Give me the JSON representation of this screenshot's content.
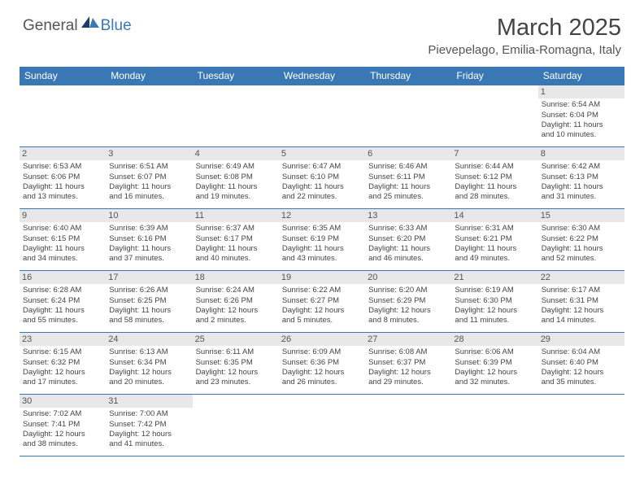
{
  "logo": {
    "textDark": "General",
    "textBlue": "Blue"
  },
  "title": "March 2025",
  "location": "Pievepelago, Emilia-Romagna, Italy",
  "dayHeaders": [
    "Sunday",
    "Monday",
    "Tuesday",
    "Wednesday",
    "Thursday",
    "Friday",
    "Saturday"
  ],
  "colors": {
    "headerBg": "#3a78b5",
    "headerText": "#ffffff",
    "border": "#3a78b5",
    "dayNumBg": "#e8e8e8",
    "bodyText": "#444444"
  },
  "typography": {
    "titleSize": 29,
    "locationSize": 15,
    "headerSize": 12,
    "cellSize": 9.5
  },
  "weeks": [
    [
      {
        "empty": true
      },
      {
        "empty": true
      },
      {
        "empty": true
      },
      {
        "empty": true
      },
      {
        "empty": true
      },
      {
        "empty": true
      },
      {
        "num": "1",
        "sunrise": "Sunrise: 6:54 AM",
        "sunset": "Sunset: 6:04 PM",
        "day1": "Daylight: 11 hours",
        "day2": "and 10 minutes."
      }
    ],
    [
      {
        "num": "2",
        "sunrise": "Sunrise: 6:53 AM",
        "sunset": "Sunset: 6:06 PM",
        "day1": "Daylight: 11 hours",
        "day2": "and 13 minutes."
      },
      {
        "num": "3",
        "sunrise": "Sunrise: 6:51 AM",
        "sunset": "Sunset: 6:07 PM",
        "day1": "Daylight: 11 hours",
        "day2": "and 16 minutes."
      },
      {
        "num": "4",
        "sunrise": "Sunrise: 6:49 AM",
        "sunset": "Sunset: 6:08 PM",
        "day1": "Daylight: 11 hours",
        "day2": "and 19 minutes."
      },
      {
        "num": "5",
        "sunrise": "Sunrise: 6:47 AM",
        "sunset": "Sunset: 6:10 PM",
        "day1": "Daylight: 11 hours",
        "day2": "and 22 minutes."
      },
      {
        "num": "6",
        "sunrise": "Sunrise: 6:46 AM",
        "sunset": "Sunset: 6:11 PM",
        "day1": "Daylight: 11 hours",
        "day2": "and 25 minutes."
      },
      {
        "num": "7",
        "sunrise": "Sunrise: 6:44 AM",
        "sunset": "Sunset: 6:12 PM",
        "day1": "Daylight: 11 hours",
        "day2": "and 28 minutes."
      },
      {
        "num": "8",
        "sunrise": "Sunrise: 6:42 AM",
        "sunset": "Sunset: 6:13 PM",
        "day1": "Daylight: 11 hours",
        "day2": "and 31 minutes."
      }
    ],
    [
      {
        "num": "9",
        "sunrise": "Sunrise: 6:40 AM",
        "sunset": "Sunset: 6:15 PM",
        "day1": "Daylight: 11 hours",
        "day2": "and 34 minutes."
      },
      {
        "num": "10",
        "sunrise": "Sunrise: 6:39 AM",
        "sunset": "Sunset: 6:16 PM",
        "day1": "Daylight: 11 hours",
        "day2": "and 37 minutes."
      },
      {
        "num": "11",
        "sunrise": "Sunrise: 6:37 AM",
        "sunset": "Sunset: 6:17 PM",
        "day1": "Daylight: 11 hours",
        "day2": "and 40 minutes."
      },
      {
        "num": "12",
        "sunrise": "Sunrise: 6:35 AM",
        "sunset": "Sunset: 6:19 PM",
        "day1": "Daylight: 11 hours",
        "day2": "and 43 minutes."
      },
      {
        "num": "13",
        "sunrise": "Sunrise: 6:33 AM",
        "sunset": "Sunset: 6:20 PM",
        "day1": "Daylight: 11 hours",
        "day2": "and 46 minutes."
      },
      {
        "num": "14",
        "sunrise": "Sunrise: 6:31 AM",
        "sunset": "Sunset: 6:21 PM",
        "day1": "Daylight: 11 hours",
        "day2": "and 49 minutes."
      },
      {
        "num": "15",
        "sunrise": "Sunrise: 6:30 AM",
        "sunset": "Sunset: 6:22 PM",
        "day1": "Daylight: 11 hours",
        "day2": "and 52 minutes."
      }
    ],
    [
      {
        "num": "16",
        "sunrise": "Sunrise: 6:28 AM",
        "sunset": "Sunset: 6:24 PM",
        "day1": "Daylight: 11 hours",
        "day2": "and 55 minutes."
      },
      {
        "num": "17",
        "sunrise": "Sunrise: 6:26 AM",
        "sunset": "Sunset: 6:25 PM",
        "day1": "Daylight: 11 hours",
        "day2": "and 58 minutes."
      },
      {
        "num": "18",
        "sunrise": "Sunrise: 6:24 AM",
        "sunset": "Sunset: 6:26 PM",
        "day1": "Daylight: 12 hours",
        "day2": "and 2 minutes."
      },
      {
        "num": "19",
        "sunrise": "Sunrise: 6:22 AM",
        "sunset": "Sunset: 6:27 PM",
        "day1": "Daylight: 12 hours",
        "day2": "and 5 minutes."
      },
      {
        "num": "20",
        "sunrise": "Sunrise: 6:20 AM",
        "sunset": "Sunset: 6:29 PM",
        "day1": "Daylight: 12 hours",
        "day2": "and 8 minutes."
      },
      {
        "num": "21",
        "sunrise": "Sunrise: 6:19 AM",
        "sunset": "Sunset: 6:30 PM",
        "day1": "Daylight: 12 hours",
        "day2": "and 11 minutes."
      },
      {
        "num": "22",
        "sunrise": "Sunrise: 6:17 AM",
        "sunset": "Sunset: 6:31 PM",
        "day1": "Daylight: 12 hours",
        "day2": "and 14 minutes."
      }
    ],
    [
      {
        "num": "23",
        "sunrise": "Sunrise: 6:15 AM",
        "sunset": "Sunset: 6:32 PM",
        "day1": "Daylight: 12 hours",
        "day2": "and 17 minutes."
      },
      {
        "num": "24",
        "sunrise": "Sunrise: 6:13 AM",
        "sunset": "Sunset: 6:34 PM",
        "day1": "Daylight: 12 hours",
        "day2": "and 20 minutes."
      },
      {
        "num": "25",
        "sunrise": "Sunrise: 6:11 AM",
        "sunset": "Sunset: 6:35 PM",
        "day1": "Daylight: 12 hours",
        "day2": "and 23 minutes."
      },
      {
        "num": "26",
        "sunrise": "Sunrise: 6:09 AM",
        "sunset": "Sunset: 6:36 PM",
        "day1": "Daylight: 12 hours",
        "day2": "and 26 minutes."
      },
      {
        "num": "27",
        "sunrise": "Sunrise: 6:08 AM",
        "sunset": "Sunset: 6:37 PM",
        "day1": "Daylight: 12 hours",
        "day2": "and 29 minutes."
      },
      {
        "num": "28",
        "sunrise": "Sunrise: 6:06 AM",
        "sunset": "Sunset: 6:39 PM",
        "day1": "Daylight: 12 hours",
        "day2": "and 32 minutes."
      },
      {
        "num": "29",
        "sunrise": "Sunrise: 6:04 AM",
        "sunset": "Sunset: 6:40 PM",
        "day1": "Daylight: 12 hours",
        "day2": "and 35 minutes."
      }
    ],
    [
      {
        "num": "30",
        "sunrise": "Sunrise: 7:02 AM",
        "sunset": "Sunset: 7:41 PM",
        "day1": "Daylight: 12 hours",
        "day2": "and 38 minutes."
      },
      {
        "num": "31",
        "sunrise": "Sunrise: 7:00 AM",
        "sunset": "Sunset: 7:42 PM",
        "day1": "Daylight: 12 hours",
        "day2": "and 41 minutes."
      },
      {
        "empty": true
      },
      {
        "empty": true
      },
      {
        "empty": true
      },
      {
        "empty": true
      },
      {
        "empty": true
      }
    ]
  ]
}
